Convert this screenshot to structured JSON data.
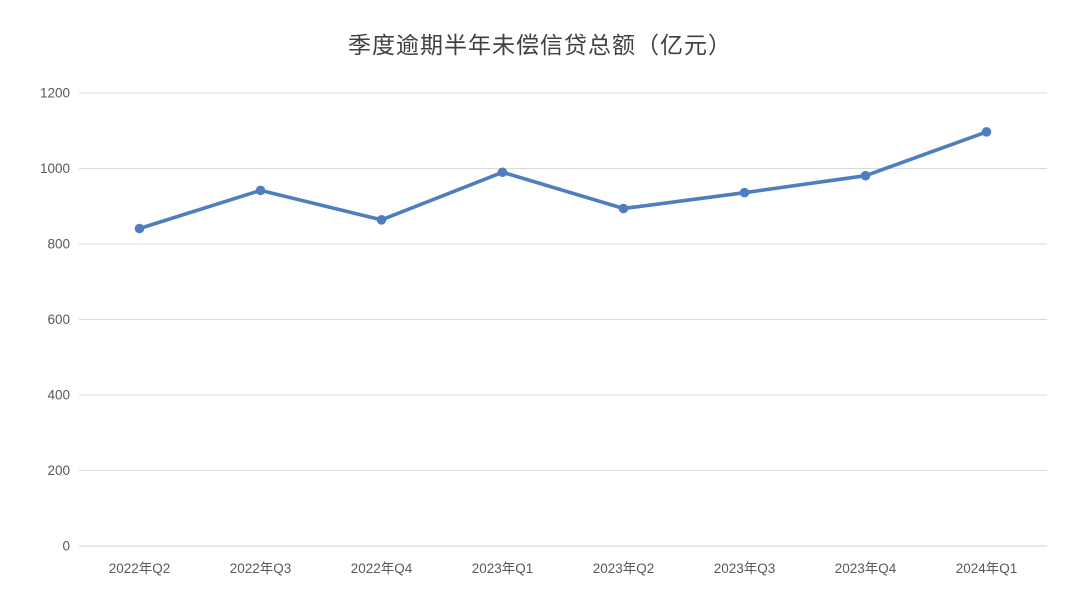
{
  "chart_data": {
    "type": "line",
    "title": "季度逾期半年未偿信贷总额（亿元）",
    "categories": [
      "2022年Q2",
      "2022年Q3",
      "2022年Q4",
      "2023年Q1",
      "2023年Q2",
      "2023年Q3",
      "2023年Q4",
      "2024年Q1"
    ],
    "series": [
      {
        "name": "",
        "values": [
          841,
          942,
          864,
          990,
          894,
          936,
          981,
          1097
        ]
      }
    ],
    "xlabel": "",
    "ylabel": "",
    "ylim": [
      0,
      1200
    ],
    "ytick_step": 200,
    "yticks": [
      0,
      200,
      400,
      600,
      800,
      1000,
      1200
    ],
    "grid": true,
    "legend": false,
    "line_color": "#4E7EBE",
    "marker": "circle",
    "gridline_color": "#D9D9D9",
    "axis_line_color": "#D0D0D0",
    "tick_label_color": "#595959",
    "title_color": "#404040",
    "background_color": "#FFFFFF"
  }
}
